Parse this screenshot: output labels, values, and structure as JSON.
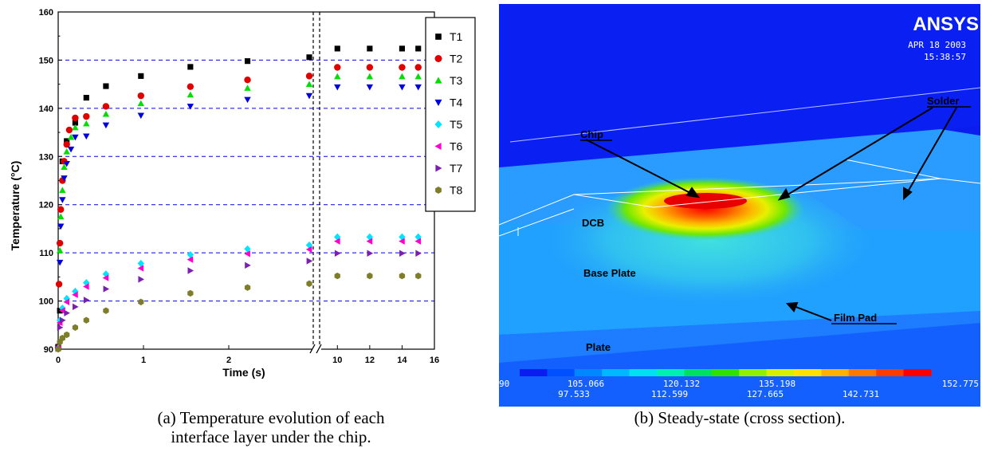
{
  "chart_data": {
    "type": "scatter",
    "ylabel": "Temperature (°C)",
    "xlabel": "Time (s)",
    "ylim": [
      90,
      160
    ],
    "yticks": [
      "90",
      "100",
      "110",
      "120",
      "130",
      "140",
      "150",
      "160"
    ],
    "xticks_left": [
      "0",
      "1",
      "2"
    ],
    "xticks_right": [
      "10",
      "12",
      "14",
      "16"
    ],
    "grid_y_values": [
      100,
      110,
      120,
      130,
      140,
      150
    ],
    "legend_position": "top-right",
    "x_axis_break": true,
    "series": [
      {
        "name": "T1",
        "color": "#000000",
        "marker": "square",
        "x": [
          0,
          0.02,
          0.05,
          0.1,
          0.2,
          0.33,
          0.56,
          0.97,
          1.55,
          2.22,
          9,
          10,
          12,
          14,
          15
        ],
        "y": [
          90.5,
          98,
          129,
          133.2,
          137,
          142.2,
          144.6,
          146.7,
          148.6,
          149.8,
          150.6,
          152.4,
          152.4,
          152.4,
          152.4
        ]
      },
      {
        "name": "T2",
        "color": "#e00000",
        "marker": "circle",
        "x": [
          0,
          0.01,
          0.02,
          0.03,
          0.05,
          0.07,
          0.1,
          0.13,
          0.2,
          0.33,
          0.56,
          0.97,
          1.55,
          2.22,
          9,
          10,
          12,
          14,
          15
        ],
        "y": [
          90.3,
          103.5,
          112,
          119,
          125,
          129,
          132.5,
          135.5,
          138,
          138.3,
          140.4,
          142.6,
          144.5,
          145.9,
          146.7,
          148.5,
          148.5,
          148.5,
          148.5
        ]
      },
      {
        "name": "T3",
        "color": "#00dd00",
        "marker": "triangle-up",
        "x": [
          0,
          0.02,
          0.03,
          0.05,
          0.07,
          0.1,
          0.15,
          0.2,
          0.33,
          0.56,
          0.97,
          1.55,
          2.22,
          9,
          10,
          12,
          14,
          15
        ],
        "y": [
          90.3,
          110.5,
          117.5,
          123,
          127.8,
          131,
          134,
          136,
          136.8,
          138.8,
          141,
          142.8,
          144.2,
          145,
          146.6,
          146.6,
          146.6,
          146.6
        ]
      },
      {
        "name": "T4",
        "color": "#0000dd",
        "marker": "triangle-down",
        "x": [
          0,
          0.02,
          0.03,
          0.05,
          0.07,
          0.1,
          0.15,
          0.2,
          0.33,
          0.56,
          0.97,
          1.55,
          2.22,
          9,
          10,
          12,
          14,
          15
        ],
        "y": [
          90.3,
          108,
          115.5,
          121,
          125.5,
          128.5,
          131.5,
          134,
          134.2,
          136.5,
          138.5,
          140.4,
          141.8,
          142.6,
          144.4,
          144.4,
          144.4,
          144.4
        ]
      },
      {
        "name": "T5",
        "color": "#00e5ff",
        "marker": "diamond",
        "x": [
          0,
          0.02,
          0.05,
          0.1,
          0.2,
          0.33,
          0.56,
          0.97,
          1.55,
          2.22,
          9,
          10,
          12,
          14,
          15
        ],
        "y": [
          90.2,
          96,
          98.5,
          100.5,
          102,
          103.8,
          105.6,
          107.8,
          109.6,
          110.8,
          111.6,
          113.3,
          113.3,
          113.3,
          113.3
        ]
      },
      {
        "name": "T6",
        "color": "#ff00cc",
        "marker": "triangle-left",
        "x": [
          0,
          0.02,
          0.05,
          0.1,
          0.2,
          0.33,
          0.56,
          0.97,
          1.55,
          2.22,
          9,
          10,
          12,
          14,
          15
        ],
        "y": [
          90.2,
          95.5,
          98,
          99.8,
          101.3,
          103,
          104.8,
          106.8,
          108.6,
          109.8,
          110.7,
          112.4,
          112.4,
          112.4,
          112.4
        ]
      },
      {
        "name": "T7",
        "color": "#7a1fb0",
        "marker": "triangle-right",
        "x": [
          0,
          0.02,
          0.05,
          0.1,
          0.2,
          0.33,
          0.56,
          0.97,
          1.55,
          2.22,
          9,
          10,
          12,
          14,
          15
        ],
        "y": [
          90.1,
          94.5,
          96,
          97.5,
          98.8,
          100.2,
          102.5,
          104.5,
          106.3,
          107.4,
          108.3,
          109.9,
          109.9,
          109.9,
          109.9
        ]
      },
      {
        "name": "T8",
        "color": "#7d7d2a",
        "marker": "hexagon",
        "x": [
          0,
          0.02,
          0.05,
          0.1,
          0.2,
          0.33,
          0.56,
          0.97,
          1.55,
          2.22,
          9,
          10,
          12,
          14,
          15
        ],
        "y": [
          90,
          91.5,
          92.3,
          93,
          94.5,
          96,
          98,
          99.8,
          101.6,
          102.8,
          103.6,
          105.2,
          105.2,
          105.2,
          105.2
        ]
      }
    ]
  },
  "captions": {
    "a_line1": "(a) Temperature evolution of each",
    "a_line2": "interface layer under the chip.",
    "b_line1": "(b) Steady-state (cross section)."
  },
  "simulation": {
    "logo": "ANSYS",
    "date": "APR 18 2003",
    "time": "15:38:57",
    "labels": {
      "chip": "Chip",
      "solder": "Solder",
      "dcb": "DCB",
      "base_plate": "Base Plate",
      "film_pad": "Film Pad",
      "plate": "Plate"
    },
    "colorbar": {
      "colors": [
        "#0a1cf0",
        "#0050ff",
        "#0088ff",
        "#00b8ff",
        "#00e0f0",
        "#00f0b0",
        "#00e060",
        "#30e000",
        "#90f000",
        "#d8f000",
        "#ffe000",
        "#ffb000",
        "#ff7800",
        "#ff3c00",
        "#ff0000"
      ],
      "labels_top": [
        "90",
        "105.066",
        "120.132",
        "135.198",
        "152.775"
      ],
      "labels_bottom": [
        "97.533",
        "112.599",
        "127.665",
        "142.731"
      ]
    }
  }
}
